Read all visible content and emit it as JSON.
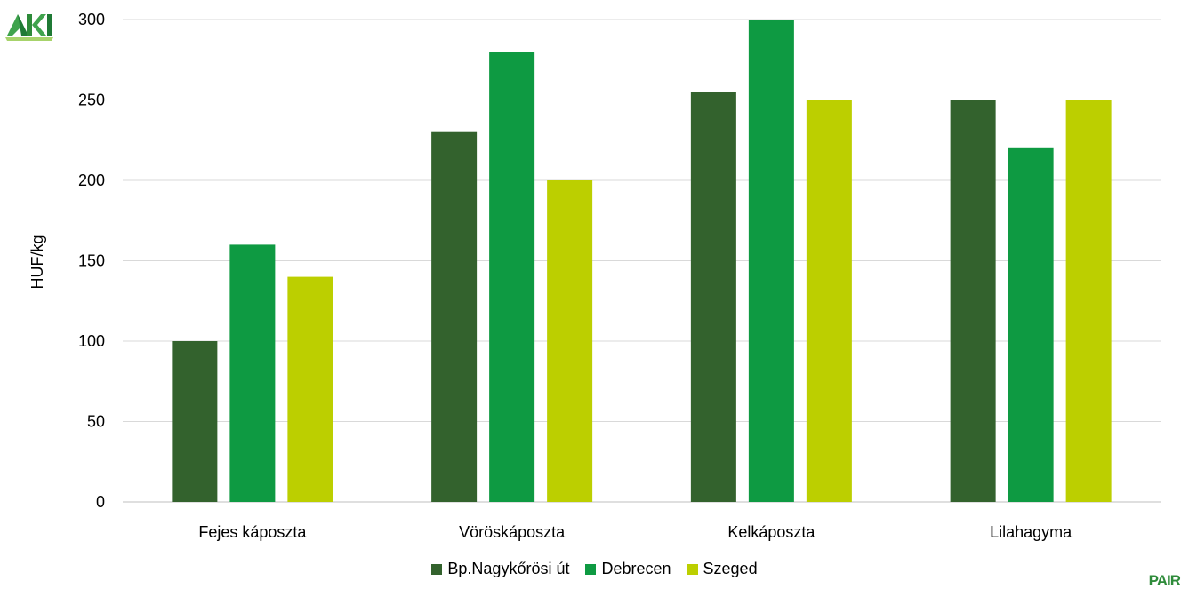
{
  "chart_data": {
    "type": "bar",
    "categories": [
      "Fejes káposzta",
      "Vöröskáposzta",
      "Kelkáposzta",
      "Lilahagyma"
    ],
    "series": [
      {
        "name": "Bp.Nagykőrösi út",
        "color": "#33622d",
        "values": [
          100,
          230,
          255,
          250
        ]
      },
      {
        "name": "Debrecen",
        "color": "#0e9a42",
        "values": [
          160,
          280,
          300,
          220
        ]
      },
      {
        "name": "Szeged",
        "color": "#bccf00",
        "values": [
          140,
          200,
          250,
          250
        ]
      }
    ],
    "ylabel": "HUF/kg",
    "ylim": [
      0,
      300
    ],
    "yticks": [
      0,
      50,
      100,
      150,
      200,
      250,
      300
    ],
    "grid": true,
    "legend": "bottom"
  },
  "logos": {
    "left": "AKI",
    "right": "PAIR"
  }
}
